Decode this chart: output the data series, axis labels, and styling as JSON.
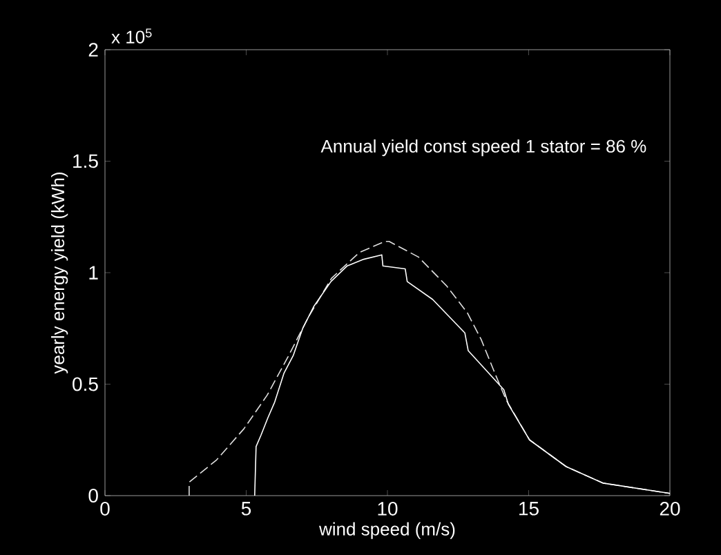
{
  "chart_data": {
    "type": "line",
    "xlabel": "wind speed (m/s)",
    "ylabel": "yearly energy yield (kWh)",
    "annotations": [
      "Annual yield const speed 1 stator = 86 %",
      "x 10$^{5}$"
    ],
    "xlim": [
      0,
      20
    ],
    "ylim": [
      0,
      2
    ],
    "xticks": [
      0,
      5,
      10,
      15,
      20
    ],
    "yticks": [
      0,
      0.5,
      1,
      1.5,
      2
    ],
    "grid": false,
    "marker": "none",
    "series": [
      {
        "color": "#e0e0e0",
        "line_style": "dashed",
        "x": [
          2.98,
          2.98,
          3.95,
          4.92,
          5.74,
          6.47,
          7.2,
          8.02,
          9.0,
          9.9,
          10.06,
          11.1,
          12.1,
          12.83,
          13.32,
          13.8,
          14.2,
          15.03,
          16.33,
          17.64,
          20.0
        ],
        "values": [
          0,
          0.06,
          0.16,
          0.3,
          0.45,
          0.62,
          0.8,
          0.975,
          1.09,
          1.14,
          1.14,
          1.07,
          0.94,
          0.82,
          0.7,
          0.55,
          0.43,
          0.25,
          0.13,
          0.056,
          0.01
        ]
      },
      {
        "color": "#ffffff",
        "line_style": "solid",
        "x": [
          5.3,
          5.35,
          5.52,
          5.77,
          6.01,
          6.34,
          6.67,
          7.0,
          7.4,
          8.0,
          8.57,
          9.16,
          9.8,
          9.84,
          10.63,
          10.7,
          11.6,
          12.74,
          12.86,
          13.87,
          14.12,
          14.28,
          15.03,
          16.33,
          17.64,
          20.0
        ],
        "values": [
          0,
          0.22,
          0.27,
          0.35,
          0.42,
          0.55,
          0.63,
          0.75,
          0.85,
          0.96,
          1.03,
          1.06,
          1.08,
          1.03,
          1.017,
          0.96,
          0.88,
          0.73,
          0.65,
          0.51,
          0.475,
          0.41,
          0.25,
          0.13,
          0.056,
          0.01
        ]
      }
    ]
  }
}
